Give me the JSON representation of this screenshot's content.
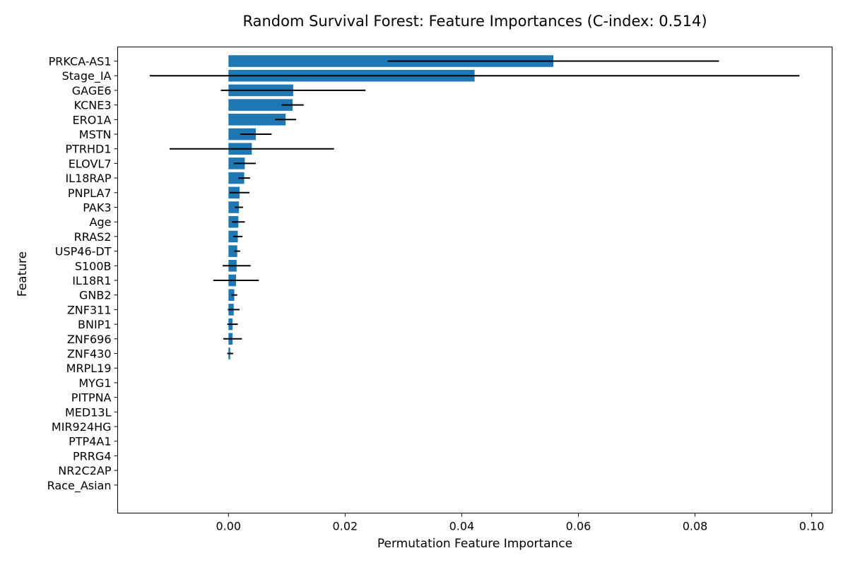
{
  "chart_data": {
    "type": "bar",
    "orientation": "horizontal",
    "title": "Random Survival Forest: Feature Importances (C-index: 0.514)",
    "xlabel": "Permutation Feature Importance",
    "ylabel": "Feature",
    "xlim": [
      -0.019,
      0.1035
    ],
    "xticks": [
      0.0,
      0.02,
      0.04,
      0.06,
      0.08,
      0.1
    ],
    "xtick_labels": [
      "0.00",
      "0.02",
      "0.04",
      "0.06",
      "0.08",
      "0.10"
    ],
    "grid": false,
    "bar_color": "#1f77b4",
    "errorbar_color": "#000000",
    "categories": [
      "PRKCA-AS1",
      "Stage_IA",
      "GAGE6",
      "KCNE3",
      "ERO1A",
      "MSTN",
      "PTRHD1",
      "ELOVL7",
      "IL18RAP",
      "PNPLA7",
      "PAK3",
      "Age",
      "RRAS2",
      "USP46-DT",
      "S100B",
      "IL18R1",
      "GNB2",
      "ZNF311",
      "BNIP1",
      "ZNF696",
      "ZNF430",
      "MRPL19",
      "MYG1",
      "PITPNA",
      "MED13L",
      "MIR924HG",
      "PTP4A1",
      "PRRG4",
      "NR2C2AP",
      "Race_Asian"
    ],
    "values": [
      0.0557,
      0.0422,
      0.0111,
      0.011,
      0.0098,
      0.0047,
      0.004,
      0.0028,
      0.0027,
      0.0019,
      0.0018,
      0.0017,
      0.0016,
      0.0015,
      0.0014,
      0.0013,
      0.001,
      0.0009,
      0.0007,
      0.0007,
      0.0003,
      0.0,
      0.0,
      0.0,
      0.0,
      0.0,
      0.0,
      0.0,
      0.0,
      0.0
    ],
    "errors": [
      0.0284,
      0.0557,
      0.0124,
      0.0019,
      0.0018,
      0.0027,
      0.0141,
      0.0019,
      0.001,
      0.0017,
      0.0007,
      0.0011,
      0.0008,
      0.0005,
      0.0024,
      0.0039,
      0.0005,
      0.001,
      0.0009,
      0.0016,
      0.0005,
      0.0,
      0.0,
      0.0,
      0.0,
      0.0,
      0.0,
      0.0,
      0.0,
      0.0
    ]
  }
}
